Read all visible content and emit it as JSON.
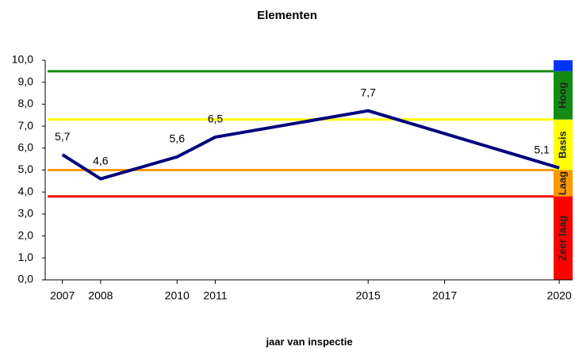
{
  "chart_data": {
    "type": "line",
    "title": "Elementen",
    "x_label": "jaar van inspectie",
    "x": [
      2007,
      2008,
      2010,
      2011,
      2015,
      2020
    ],
    "series": [
      {
        "name": "Elementen",
        "color": "#00007f",
        "values": [
          5.7,
          4.6,
          5.6,
          6.5,
          7.7,
          5.1
        ],
        "value_labels": [
          "5,7",
          "4,6",
          "5,6",
          "6,5",
          "7,7",
          "5,1"
        ]
      }
    ],
    "xlim": [
      2006.55,
      2020.35
    ],
    "xticks": [
      2007,
      2008,
      2010,
      2011,
      2015,
      2017,
      2020
    ],
    "ylim": [
      0,
      10
    ],
    "yticks": [
      {
        "value": 0,
        "label": "0,0"
      },
      {
        "value": 1,
        "label": "1,0"
      },
      {
        "value": 2,
        "label": "2,0"
      },
      {
        "value": 3,
        "label": "3,0"
      },
      {
        "value": 4,
        "label": "4,0"
      },
      {
        "value": 5,
        "label": "5,0"
      },
      {
        "value": 6,
        "label": "6,0"
      },
      {
        "value": 7,
        "label": "7,0"
      },
      {
        "value": 8,
        "label": "8,0"
      },
      {
        "value": 9,
        "label": "9,0"
      },
      {
        "value": 10,
        "label": "10,0"
      }
    ],
    "bands": [
      {
        "name": null,
        "color": "#0033ff",
        "from": 9.5,
        "to": 10
      },
      {
        "name": "Hoog",
        "color": "#138a13",
        "from": 7.3,
        "to": 9.5
      },
      {
        "name": "Basis",
        "color": "#ffff00",
        "from": 5.0,
        "to": 7.3
      },
      {
        "name": "Laag",
        "color": "#ff9900",
        "from": 3.8,
        "to": 5.0
      },
      {
        "name": "Zeer laag",
        "color": "#ff0000",
        "from": 0,
        "to": 3.8
      }
    ]
  }
}
